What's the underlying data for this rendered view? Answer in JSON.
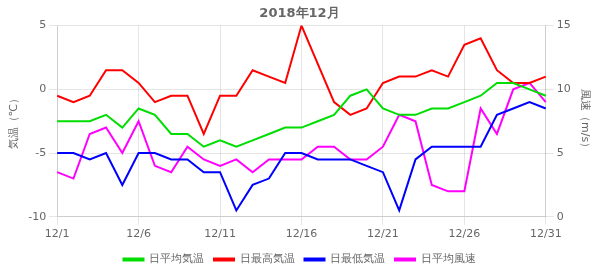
{
  "chart_data": {
    "type": "line",
    "title": "2018年12月",
    "ylabel": "気温（℃）",
    "y2label": "風速（m/s）",
    "categories": [
      "12/1",
      null,
      null,
      null,
      null,
      "12/6",
      null,
      null,
      null,
      null,
      "12/11",
      null,
      null,
      null,
      null,
      "12/16",
      null,
      null,
      null,
      null,
      "12/21",
      null,
      null,
      null,
      null,
      "12/26",
      null,
      null,
      null,
      null,
      "12/31"
    ],
    "ylim": [
      -10,
      5
    ],
    "yticks": [
      -10,
      -5,
      0,
      5
    ],
    "y2lim": [
      0,
      15
    ],
    "y2ticks": [
      0,
      5,
      10,
      15
    ],
    "grid": true,
    "legend": "bottom",
    "series": [
      {
        "name": "日平均気温",
        "color": "#00dd00",
        "values": [
          -2.5,
          -2.5,
          -2.5,
          -2.0,
          -3.0,
          -1.5,
          -2.0,
          -3.5,
          -3.5,
          -4.5,
          -4.0,
          -4.5,
          -4.0,
          -3.5,
          -3.0,
          -3.0,
          -2.5,
          -2.0,
          -0.5,
          0.0,
          -1.5,
          -2.0,
          -2.0,
          -1.5,
          -1.5,
          -1.0,
          -0.5,
          0.5,
          0.5,
          0.0,
          -0.5
        ]
      },
      {
        "name": "日最高気温",
        "color": "#ff0000",
        "values": [
          -0.5,
          -1.0,
          -0.5,
          1.5,
          1.5,
          0.5,
          -1.0,
          -0.5,
          -0.5,
          -3.5,
          -0.5,
          -0.5,
          1.5,
          1.0,
          0.5,
          5.0,
          2.0,
          -1.0,
          -2.0,
          -1.5,
          0.5,
          1.0,
          1.0,
          1.5,
          1.0,
          3.5,
          4.0,
          1.5,
          0.5,
          0.5,
          1.0
        ]
      },
      {
        "name": "日最低気温",
        "color": "#0000ff",
        "values": [
          -5.0,
          -5.0,
          -5.5,
          -5.0,
          -7.5,
          -5.0,
          -5.0,
          -5.5,
          -5.5,
          -6.5,
          -6.5,
          -9.5,
          -7.5,
          -7.0,
          -5.0,
          -5.0,
          -5.5,
          -5.5,
          -5.5,
          -6.0,
          -6.5,
          -9.5,
          -5.5,
          -4.5,
          -4.5,
          -4.5,
          -4.5,
          -2.0,
          -1.5,
          -1.0,
          -1.5
        ]
      },
      {
        "name": "日平均風速",
        "color": "#ff00ff",
        "axis": "y2",
        "values": [
          3.5,
          3.0,
          6.5,
          7.0,
          5.0,
          7.5,
          4.0,
          3.5,
          5.5,
          4.5,
          4.0,
          4.5,
          3.5,
          4.5,
          4.5,
          4.5,
          5.5,
          5.5,
          4.5,
          4.5,
          5.5,
          8.0,
          7.5,
          2.5,
          2.0,
          2.0,
          8.5,
          6.5,
          10.0,
          10.5,
          9.0
        ]
      }
    ]
  }
}
